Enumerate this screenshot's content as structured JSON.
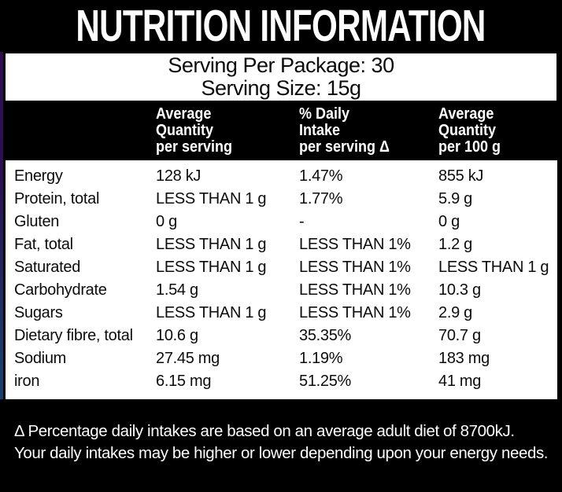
{
  "colors": {
    "background": "#000000",
    "panel": "#ffffff",
    "ink": "#0c0c0c",
    "light_text": "#ffffff",
    "edge_strip_top": "#31104d",
    "edge_strip_bottom": "#1d3e68"
  },
  "title": "NUTRITION INFORMATION",
  "serving": {
    "per_package": "Serving Per Package: 30",
    "size": "Serving Size: 15g"
  },
  "table": {
    "headers": [
      {
        "line1": "Average",
        "line2": "Quantity",
        "line3": "per serving"
      },
      {
        "line1": "% Daily",
        "line2": "Intake",
        "line3": "per serving Δ"
      },
      {
        "line1": "Average",
        "line2": "Quantity",
        "line3": "per 100 g"
      }
    ],
    "rows": [
      {
        "name": "Energy",
        "per_serving": "128 kJ",
        "daily_intake": "1.47%",
        "per_100g": "855 kJ"
      },
      {
        "name": "Protein, total",
        "per_serving": "LESS THAN 1 g",
        "daily_intake": "1.77%",
        "per_100g": "5.9 g"
      },
      {
        "name": "Gluten",
        "per_serving": "0 g",
        "daily_intake": "-",
        "per_100g": "0 g"
      },
      {
        "name": "Fat, total",
        "per_serving": "LESS THAN 1 g",
        "daily_intake": "LESS THAN 1%",
        "per_100g": "1.2 g"
      },
      {
        "name": "Saturated",
        "per_serving": "LESS THAN 1 g",
        "daily_intake": "LESS THAN 1%",
        "per_100g": "LESS THAN 1 g"
      },
      {
        "name": "Carbohydrate",
        "per_serving": "1.54 g",
        "daily_intake": "LESS THAN 1%",
        "per_100g": "10.3 g"
      },
      {
        "name": "Sugars",
        "per_serving": "LESS THAN 1 g",
        "daily_intake": "LESS THAN 1%",
        "per_100g": "2.9 g"
      },
      {
        "name": "Dietary fibre, total",
        "per_serving": "10.6 g",
        "daily_intake": "35.35%",
        "per_100g": "70.7 g"
      },
      {
        "name": "Sodium",
        "per_serving": "27.45 mg",
        "daily_intake": "1.19%",
        "per_100g": "183 mg"
      },
      {
        "name": "iron",
        "per_serving": "6.15 mg",
        "daily_intake": "51.25%",
        "per_100g": "41 mg"
      }
    ]
  },
  "footnote": {
    "line1": "Δ Percentage daily intakes are based on an average adult diet of 8700kJ.",
    "line2": "Your daily intakes may be higher or lower depending upon your energy needs."
  }
}
